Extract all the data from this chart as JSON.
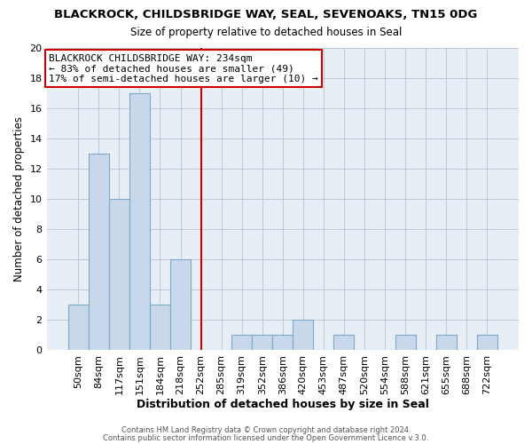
{
  "title": "BLACKROCK, CHILDSBRIDGE WAY, SEAL, SEVENOAKS, TN15 0DG",
  "subtitle": "Size of property relative to detached houses in Seal",
  "xlabel": "Distribution of detached houses by size in Seal",
  "ylabel": "Number of detached properties",
  "categories": [
    "50sqm",
    "84sqm",
    "117sqm",
    "151sqm",
    "184sqm",
    "218sqm",
    "252sqm",
    "285sqm",
    "319sqm",
    "352sqm",
    "386sqm",
    "420sqm",
    "453sqm",
    "487sqm",
    "520sqm",
    "554sqm",
    "588sqm",
    "621sqm",
    "655sqm",
    "688sqm",
    "722sqm"
  ],
  "values": [
    3,
    13,
    10,
    17,
    3,
    6,
    0,
    0,
    1,
    1,
    1,
    2,
    0,
    1,
    0,
    0,
    1,
    0,
    1,
    0,
    1
  ],
  "bar_color": "#c8d8ea",
  "bar_edge_color": "#7aaac8",
  "vline_x_index": 6.0,
  "vline_color": "#cc0000",
  "ylim": [
    0,
    20
  ],
  "yticks": [
    0,
    2,
    4,
    6,
    8,
    10,
    12,
    14,
    16,
    18,
    20
  ],
  "annotation_title": "BLACKROCK CHILDSBRIDGE WAY: 234sqm",
  "annotation_line1": "← 83% of detached houses are smaller (49)",
  "annotation_line2": "17% of semi-detached houses are larger (10) →",
  "footer1": "Contains HM Land Registry data © Crown copyright and database right 2024.",
  "footer2": "Contains public sector information licensed under the Open Government Licence v.3.0.",
  "bg_color": "#ffffff",
  "plot_bg_color": "#e8eef6",
  "grid_color": "#b8c4d4"
}
